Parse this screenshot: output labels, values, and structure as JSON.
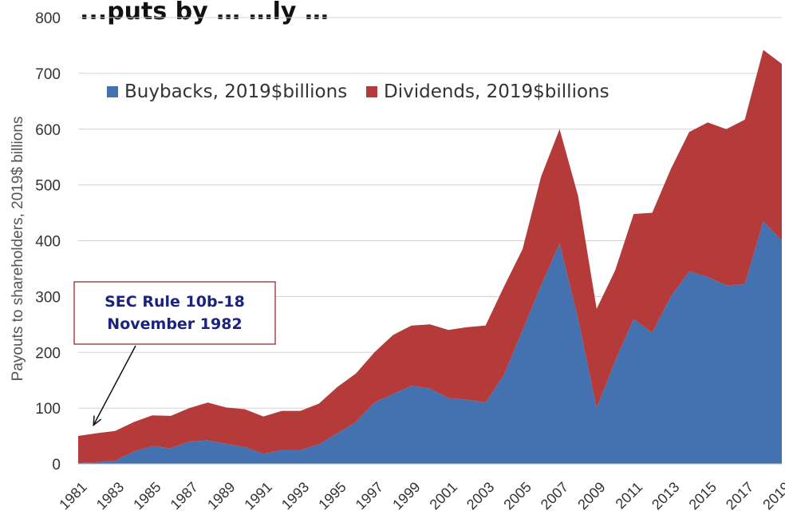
{
  "title_fragment": "...puts by …     …ly …",
  "chart_data": {
    "type": "area",
    "stacked": true,
    "ylabel": "Payouts to shareholders, 2019$ billions",
    "xlabel": "",
    "ylim": [
      0,
      800
    ],
    "yticks": [
      0,
      100,
      200,
      300,
      400,
      500,
      600,
      700,
      800
    ],
    "grid": true,
    "legend_position": "top-left",
    "x": [
      1981,
      1982,
      1983,
      1984,
      1985,
      1986,
      1987,
      1988,
      1989,
      1990,
      1991,
      1992,
      1993,
      1994,
      1995,
      1996,
      1997,
      1998,
      1999,
      2000,
      2001,
      2002,
      2003,
      2004,
      2005,
      2006,
      2007,
      2008,
      2009,
      2010,
      2011,
      2012,
      2013,
      2014,
      2015,
      2016,
      2017,
      2018,
      2019
    ],
    "xtick_labels": [
      "1981",
      "1983",
      "1985",
      "1987",
      "1989",
      "1991",
      "1993",
      "1995",
      "1997",
      "1999",
      "2001",
      "2003",
      "2005",
      "2007",
      "2009",
      "2011",
      "2013",
      "2015",
      "2017",
      "2019"
    ],
    "series": [
      {
        "name": "Buybacks, 2019$billions",
        "color": "#4472b0",
        "values": [
          2,
          3,
          6,
          22,
          32,
          28,
          40,
          42,
          36,
          30,
          18,
          25,
          25,
          35,
          55,
          75,
          110,
          125,
          140,
          135,
          118,
          115,
          110,
          160,
          240,
          320,
          395,
          260,
          100,
          185,
          260,
          235,
          300,
          345,
          335,
          320,
          322,
          435,
          400
        ]
      },
      {
        "name": "Dividends, 2019$billions",
        "color": "#b53a3a",
        "values": [
          48,
          52,
          53,
          53,
          55,
          58,
          60,
          68,
          65,
          68,
          67,
          70,
          70,
          73,
          83,
          87,
          90,
          106,
          108,
          115,
          122,
          130,
          138,
          158,
          145,
          195,
          205,
          220,
          178,
          162,
          188,
          215,
          228,
          250,
          277,
          280,
          295,
          307,
          317
        ]
      }
    ],
    "annotation": {
      "lines": [
        "SEC Rule 10b-18",
        "November 1982"
      ],
      "points_to_year": 1982
    }
  }
}
